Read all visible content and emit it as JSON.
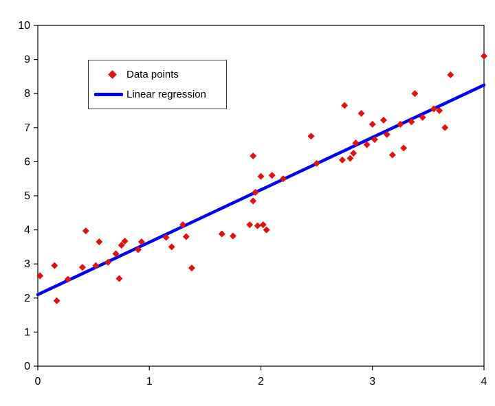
{
  "chart_data": {
    "type": "scatter",
    "title": "",
    "xlabel": "",
    "ylabel": "",
    "xlim": [
      0,
      4
    ],
    "ylim": [
      0,
      10
    ],
    "x_ticks": [
      0,
      1,
      2,
      3,
      4
    ],
    "y_ticks": [
      0,
      1,
      2,
      3,
      4,
      5,
      6,
      7,
      8,
      9,
      10
    ],
    "grid": false,
    "legend_position": "upper-left-inside",
    "colors": {
      "axis": "#000000",
      "text": "#000000",
      "background": "#ffffff",
      "points": "#e01212",
      "line": "#0000ee"
    },
    "legend": [
      {
        "label": "Data points",
        "marker": "diamond",
        "color": "#e01212"
      },
      {
        "label": "Linear regression",
        "marker": "line",
        "color": "#0000ee"
      }
    ],
    "series": [
      {
        "name": "Data points",
        "type": "scatter",
        "marker": "diamond",
        "color": "#e01212",
        "points": [
          [
            0.02,
            2.65
          ],
          [
            0.15,
            2.95
          ],
          [
            0.17,
            1.92
          ],
          [
            0.27,
            2.55
          ],
          [
            0.4,
            2.9
          ],
          [
            0.43,
            3.97
          ],
          [
            0.52,
            2.95
          ],
          [
            0.55,
            3.65
          ],
          [
            0.63,
            3.05
          ],
          [
            0.7,
            3.3
          ],
          [
            0.73,
            2.57
          ],
          [
            0.75,
            3.55
          ],
          [
            0.78,
            3.67
          ],
          [
            0.9,
            3.42
          ],
          [
            0.93,
            3.65
          ],
          [
            1.15,
            3.78
          ],
          [
            1.2,
            3.5
          ],
          [
            1.3,
            4.15
          ],
          [
            1.33,
            3.8
          ],
          [
            1.38,
            2.88
          ],
          [
            1.65,
            3.88
          ],
          [
            1.75,
            3.82
          ],
          [
            1.9,
            4.15
          ],
          [
            1.93,
            4.85
          ],
          [
            1.93,
            6.17
          ],
          [
            1.95,
            5.1
          ],
          [
            1.97,
            4.12
          ],
          [
            2.0,
            5.57
          ],
          [
            2.02,
            4.15
          ],
          [
            2.05,
            4.0
          ],
          [
            2.1,
            5.6
          ],
          [
            2.2,
            5.5
          ],
          [
            2.45,
            6.75
          ],
          [
            2.5,
            5.95
          ],
          [
            2.73,
            6.05
          ],
          [
            2.75,
            7.65
          ],
          [
            2.8,
            6.1
          ],
          [
            2.83,
            6.25
          ],
          [
            2.85,
            6.55
          ],
          [
            2.9,
            7.42
          ],
          [
            2.95,
            6.5
          ],
          [
            3.0,
            7.1
          ],
          [
            3.02,
            6.65
          ],
          [
            3.1,
            7.22
          ],
          [
            3.13,
            6.8
          ],
          [
            3.18,
            6.2
          ],
          [
            3.25,
            7.1
          ],
          [
            3.28,
            6.4
          ],
          [
            3.35,
            7.17
          ],
          [
            3.38,
            8.0
          ],
          [
            3.45,
            7.3
          ],
          [
            3.55,
            7.55
          ],
          [
            3.6,
            7.5
          ],
          [
            3.65,
            7.0
          ],
          [
            3.7,
            8.55
          ],
          [
            4.0,
            9.1
          ]
        ]
      },
      {
        "name": "Linear regression",
        "type": "line",
        "color": "#0000ee",
        "points": [
          [
            0,
            2.1
          ],
          [
            4,
            8.25
          ]
        ]
      }
    ]
  }
}
